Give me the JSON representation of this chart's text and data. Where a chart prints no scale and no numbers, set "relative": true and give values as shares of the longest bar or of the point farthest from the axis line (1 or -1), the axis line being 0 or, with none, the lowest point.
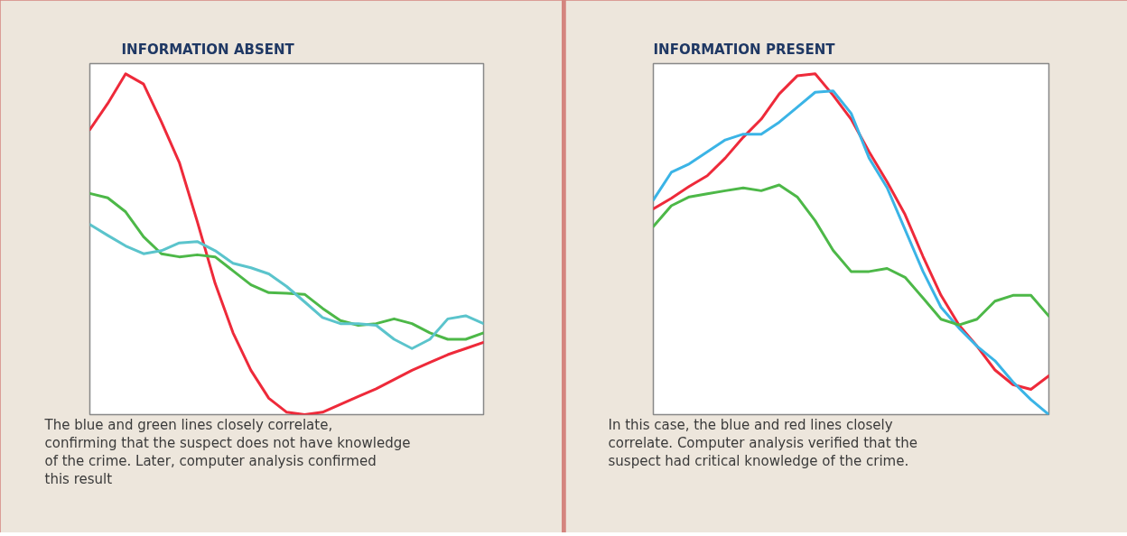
{
  "chart_data": [
    {
      "type": "line",
      "relative": true,
      "title": "INFORMATION ABSENT",
      "categories": [
        null,
        null,
        null,
        null,
        null,
        null,
        null,
        null,
        null,
        null,
        null,
        null,
        null,
        null,
        null,
        null,
        null,
        null,
        null,
        null,
        null,
        null,
        null
      ],
      "series": [
        {
          "color": "#ee2a3a",
          "values": [
            0.836,
            0.913,
            1.0,
            0.97,
            0.859,
            0.74,
            0.567,
            0.385,
            0.24,
            0.13,
            0.048,
            0.007,
            0,
            0.007,
            0.03,
            0.053,
            0.076,
            0.103,
            0.13,
            0.153,
            0.176,
            0.194,
            0.212
          ]
        },
        {
          "color": "#4db848",
          "values": [
            0.649,
            0.636,
            0.595,
            0.522,
            0.472,
            0.463,
            0.469,
            0.463,
            0.422,
            0.381,
            0.358,
            0.356,
            0.353,
            0.312,
            0.276,
            0.262,
            0.267,
            0.281,
            0.267,
            0.24,
            0.221,
            0.221,
            0.24
          ]
        },
        {
          "color": "#5bc4cc",
          "values": [
            0.558,
            0.526,
            0.495,
            0.472,
            0.481,
            0.504,
            0.508,
            0.481,
            0.444,
            0.431,
            0.413,
            0.376,
            0.331,
            0.285,
            0.267,
            0.267,
            0.262,
            0.221,
            0.194,
            0.221,
            0.281,
            0.29,
            0.267
          ]
        }
      ],
      "annotations": [
        "The blue and green lines closely correlate, confirming that the suspect does not have knowledge of the crime.  Later, computer analysis confirmed this result"
      ]
    },
    {
      "type": "line",
      "relative": true,
      "title": "INFORMATION PRESENT",
      "categories": [
        null,
        null,
        null,
        null,
        null,
        null,
        null,
        null,
        null,
        null,
        null,
        null,
        null,
        null,
        null,
        null,
        null,
        null,
        null,
        null,
        null,
        null,
        null
      ],
      "series": [
        {
          "color": "#ee2a3a",
          "values": [
            0.604,
            0.635,
            0.67,
            0.701,
            0.753,
            0.814,
            0.867,
            0.941,
            0.994,
            1.0,
            0.937,
            0.867,
            0.771,
            0.683,
            0.587,
            0.464,
            0.35,
            0.263,
            0.201,
            0.131,
            0.088,
            0.074,
            0.114
          ]
        },
        {
          "color": "#3bb4e6",
          "values": [
            0.63,
            0.711,
            0.736,
            0.771,
            0.806,
            0.823,
            0.823,
            0.858,
            0.902,
            0.946,
            0.95,
            0.884,
            0.753,
            0.666,
            0.543,
            0.42,
            0.315,
            0.254,
            0.201,
            0.158,
            0.096,
            0.044,
            0
          ]
        },
        {
          "color": "#4db848",
          "values": [
            0.552,
            0.613,
            0.639,
            0.648,
            0.657,
            0.665,
            0.657,
            0.674,
            0.639,
            0.569,
            0.482,
            0.42,
            0.42,
            0.429,
            0.403,
            0.342,
            0.28,
            0.263,
            0.28,
            0.333,
            0.35,
            0.35,
            0.289
          ]
        }
      ],
      "annotations": [
        "In this case, the blue and red lines closely correlate. Computer analysis verified that the suspect had critical knowledge of the crime."
      ]
    }
  ]
}
